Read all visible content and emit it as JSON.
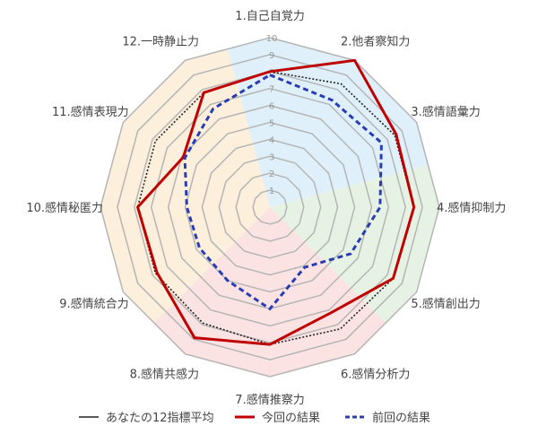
{
  "chart_data": {
    "type": "radar",
    "title": "",
    "categories": [
      "1.自己自覚力",
      "2.他者察知力",
      "3.感情語彙力",
      "4.感情抑制力",
      "5.感情創出力",
      "6.感情分析力",
      "7.感情推察力",
      "8.感情共感力",
      "9.感情統合力",
      "10.感情秘匿力",
      "11.感情表現力",
      "12.一時静止力"
    ],
    "rlim": [
      0,
      10
    ],
    "ticks": [
      "1",
      "2",
      "3",
      "4",
      "5",
      "6",
      "7",
      "8",
      "9",
      "10"
    ],
    "grid": true,
    "legend_position": "bottom",
    "series": [
      {
        "name": "あなたの12指標平均",
        "color": "#222222",
        "style": "dotted",
        "values": [
          8.0,
          8.4,
          8.5,
          8.5,
          8.4,
          8.3,
          8.1,
          7.9,
          7.8,
          7.8,
          7.8,
          7.8
        ]
      },
      {
        "name": "今回の結果",
        "color": "#c00000",
        "style": "solid",
        "values": [
          8.0,
          10.0,
          8.6,
          8.5,
          8.4,
          7.2,
          8.1,
          8.9,
          7.7,
          7.8,
          5.9,
          7.8
        ]
      },
      {
        "name": "前回の結果",
        "color": "#2a3cb4",
        "style": "dashed",
        "values": [
          7.8,
          7.3,
          7.6,
          6.5,
          5.5,
          4.1,
          6.0,
          5.0,
          4.8,
          4.9,
          5.8,
          6.7
        ]
      }
    ],
    "sector_colors": [
      "#dff0fa",
      "#e6f3e4",
      "#fbe3e3",
      "#fcefdc"
    ]
  }
}
